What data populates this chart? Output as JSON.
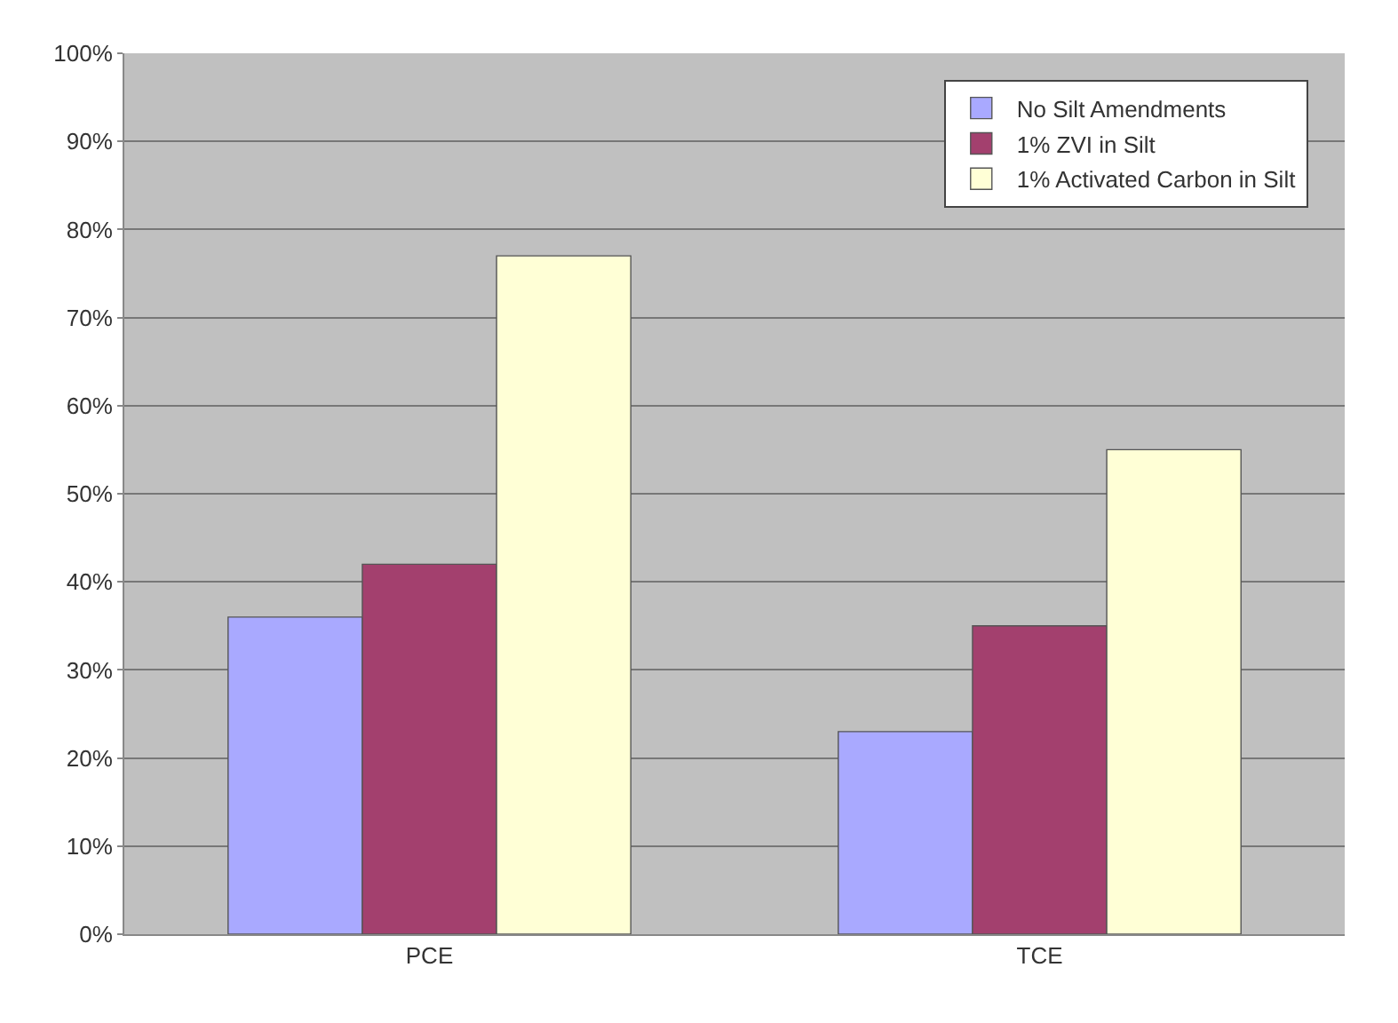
{
  "chart_data": {
    "type": "bar",
    "categories": [
      "PCE",
      "TCE"
    ],
    "series": [
      {
        "name": "No Silt Amendments",
        "color": "#a9a9ff",
        "values": [
          36,
          23
        ]
      },
      {
        "name": "1% ZVI in Silt",
        "color": "#a3406e",
        "values": [
          42,
          35
        ]
      },
      {
        "name": "1% Activated Carbon in Silt",
        "color": "#ffffd6",
        "values": [
          77,
          55
        ]
      }
    ],
    "ylim": [
      0,
      100
    ],
    "yticks": [
      {
        "value": 0,
        "label": "0%"
      },
      {
        "value": 10,
        "label": "10%"
      },
      {
        "value": 20,
        "label": "20%"
      },
      {
        "value": 30,
        "label": "30%"
      },
      {
        "value": 40,
        "label": "40%"
      },
      {
        "value": 50,
        "label": "50%"
      },
      {
        "value": 60,
        "label": "60%"
      },
      {
        "value": 70,
        "label": "70%"
      },
      {
        "value": 80,
        "label": "80%"
      },
      {
        "value": 90,
        "label": "90%"
      },
      {
        "value": 100,
        "label": "100%"
      }
    ],
    "grid": "y",
    "legend": "top right"
  }
}
